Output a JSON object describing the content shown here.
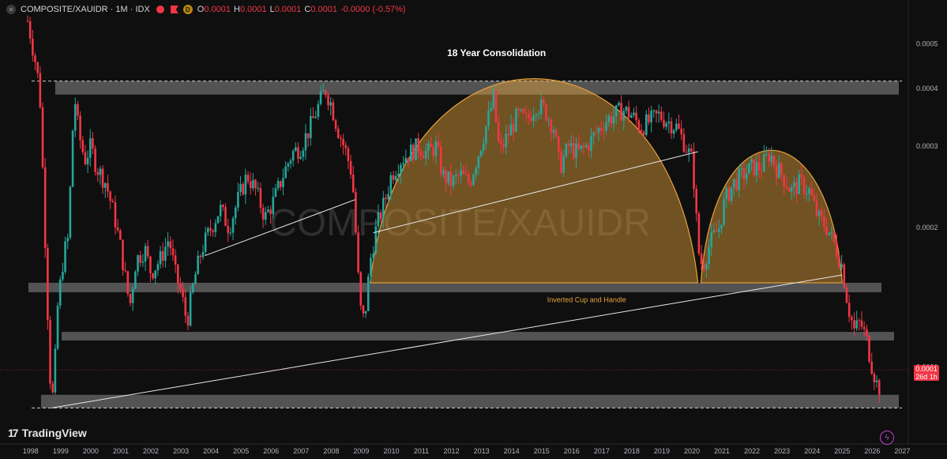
{
  "header": {
    "symbol": "COMPOSITE/XAUIDR · 1M · IDX",
    "open_label": "O",
    "open": "0.0001",
    "high_label": "H",
    "high": "0.0001",
    "low_label": "L",
    "low": "0.0001",
    "close_label": "C",
    "close": "0.0001",
    "change": "-0.0000 (-0.57%)"
  },
  "watermark": "COMPOSITE/XAUIDR",
  "logo": {
    "mark": "17",
    "text": "TradingView"
  },
  "price_badge": {
    "price": "0.0001",
    "countdown": "26d 1h"
  },
  "colors": {
    "up": "#26a69a",
    "down": "#f23645",
    "cup": "#e8a33a",
    "zone": "#6b6b6b"
  },
  "chart_data": {
    "type": "candlestick",
    "title": "18 Year Consolidation",
    "y_scale": "log",
    "y_ticks": [
      "0.0005",
      "0.0004",
      "0.0003",
      "0.0002",
      "0.0001"
    ],
    "x_ticks": [
      "1998",
      "1999",
      "2000",
      "2001",
      "2002",
      "2003",
      "2004",
      "2005",
      "2006",
      "2007",
      "2008",
      "2009",
      "2010",
      "2011",
      "2012",
      "2013",
      "2014",
      "2015",
      "2016",
      "2017",
      "2018",
      "2019",
      "2020",
      "2021",
      "2022",
      "2023",
      "2024",
      "2025",
      "2026",
      "2027"
    ],
    "xlim": [
      1997.9,
      2027.2
    ],
    "ylim": [
      7e-05,
      0.00057
    ],
    "path": [
      [
        1997.9,
        0.00056
      ],
      [
        1998.0,
        0.00052
      ],
      [
        1998.15,
        0.00046
      ],
      [
        1998.3,
        0.0004
      ],
      [
        1998.45,
        0.00022
      ],
      [
        1998.55,
        0.00014
      ],
      [
        1998.65,
        9.5e-05
      ],
      [
        1998.75,
        8.5e-05
      ],
      [
        1998.9,
        0.000135
      ],
      [
        1999.1,
        0.000175
      ],
      [
        1999.25,
        0.00019
      ],
      [
        1999.45,
        0.00039
      ],
      [
        1999.6,
        0.00032
      ],
      [
        1999.8,
        0.00028
      ],
      [
        2000.0,
        0.0003
      ],
      [
        2000.2,
        0.00027
      ],
      [
        2000.5,
        0.00025
      ],
      [
        2000.8,
        0.00021
      ],
      [
        2001.0,
        0.00018
      ],
      [
        2001.3,
        0.000135
      ],
      [
        2001.5,
        0.00017
      ],
      [
        2001.8,
        0.00018
      ],
      [
        2002.0,
        0.00016
      ],
      [
        2002.3,
        0.00017
      ],
      [
        2002.6,
        0.00019
      ],
      [
        2002.8,
        0.00016
      ],
      [
        2003.0,
        0.000145
      ],
      [
        2003.2,
        0.000125
      ],
      [
        2003.45,
        0.000155
      ],
      [
        2003.7,
        0.00018
      ],
      [
        2004.0,
        0.0002
      ],
      [
        2004.3,
        0.00022
      ],
      [
        2004.6,
        0.0002
      ],
      [
        2004.9,
        0.00023
      ],
      [
        2005.2,
        0.00026
      ],
      [
        2005.5,
        0.00024
      ],
      [
        2005.8,
        0.00021
      ],
      [
        2006.1,
        0.00023
      ],
      [
        2006.4,
        0.00026
      ],
      [
        2006.7,
        0.00029
      ],
      [
        2007.0,
        0.0003
      ],
      [
        2007.3,
        0.00033
      ],
      [
        2007.6,
        0.00037
      ],
      [
        2007.8,
        0.0004
      ],
      [
        2008.0,
        0.00037
      ],
      [
        2008.2,
        0.00033
      ],
      [
        2008.5,
        0.00029
      ],
      [
        2008.7,
        0.00026
      ],
      [
        2008.85,
        0.00018
      ],
      [
        2008.95,
        0.000135
      ],
      [
        2009.1,
        0.000125
      ],
      [
        2009.3,
        0.00017
      ],
      [
        2009.5,
        0.0002
      ],
      [
        2009.8,
        0.00023
      ],
      [
        2010.0,
        0.00026
      ],
      [
        2010.3,
        0.00028
      ],
      [
        2010.6,
        0.00029
      ],
      [
        2010.9,
        0.0003
      ],
      [
        2011.2,
        0.00029
      ],
      [
        2011.5,
        0.0003
      ],
      [
        2011.7,
        0.00026
      ],
      [
        2012.0,
        0.00025
      ],
      [
        2012.3,
        0.00026
      ],
      [
        2012.6,
        0.00025
      ],
      [
        2012.9,
        0.00029
      ],
      [
        2013.2,
        0.00034
      ],
      [
        2013.4,
        0.00038
      ],
      [
        2013.6,
        0.00029
      ],
      [
        2013.9,
        0.00032
      ],
      [
        2014.2,
        0.00035
      ],
      [
        2014.5,
        0.00034
      ],
      [
        2014.8,
        0.00037
      ],
      [
        2015.1,
        0.00036
      ],
      [
        2015.4,
        0.00033
      ],
      [
        2015.6,
        0.00027
      ],
      [
        2015.9,
        0.0003
      ],
      [
        2016.2,
        0.00029
      ],
      [
        2016.5,
        0.0003
      ],
      [
        2016.8,
        0.00032
      ],
      [
        2017.1,
        0.00034
      ],
      [
        2017.4,
        0.00035
      ],
      [
        2017.7,
        0.00036
      ],
      [
        2018.0,
        0.00035
      ],
      [
        2018.3,
        0.00033
      ],
      [
        2018.6,
        0.00034
      ],
      [
        2018.9,
        0.00035
      ],
      [
        2019.2,
        0.00034
      ],
      [
        2019.5,
        0.00033
      ],
      [
        2019.8,
        0.0003
      ],
      [
        2020.0,
        0.00028
      ],
      [
        2020.1,
        0.00024
      ],
      [
        2020.2,
        0.00018
      ],
      [
        2020.35,
        0.000165
      ],
      [
        2020.6,
        0.000185
      ],
      [
        2020.9,
        0.0002
      ],
      [
        2021.1,
        0.00023
      ],
      [
        2021.4,
        0.00025
      ],
      [
        2021.7,
        0.00026
      ],
      [
        2022.0,
        0.00027
      ],
      [
        2022.3,
        0.00027
      ],
      [
        2022.6,
        0.00029
      ],
      [
        2022.8,
        0.00027
      ],
      [
        2023.0,
        0.00026
      ],
      [
        2023.3,
        0.00024
      ],
      [
        2023.6,
        0.00025
      ],
      [
        2023.9,
        0.00024
      ],
      [
        2024.2,
        0.00021
      ],
      [
        2024.5,
        0.0002
      ],
      [
        2024.8,
        0.00018
      ],
      [
        2025.0,
        0.000165
      ],
      [
        2025.2,
        0.000135
      ],
      [
        2025.4,
        0.00012
      ],
      [
        2025.6,
        0.000125
      ],
      [
        2025.8,
        0.000115
      ],
      [
        2026.0,
        0.0001
      ],
      [
        2026.15,
        9.2e-05
      ],
      [
        2026.25,
        9e-05
      ]
    ],
    "zones": [
      {
        "y1": 0.000388,
        "y2": 0.000415
      },
      {
        "y1": 0.000145,
        "y2": 0.000152
      },
      {
        "y1": 0.000114,
        "y2": 0.000119
      },
      {
        "y1": 8.15e-05,
        "y2": 8.7e-05
      }
    ],
    "dashed_levels": [
      0.000415,
      8.15e-05
    ],
    "trendlines": [
      {
        "from": [
          2003.8,
          0.000174
        ],
        "to": [
          2008.8,
          0.00023
        ]
      },
      {
        "from": [
          2009.4,
          0.000195
        ],
        "to": [
          2020.2,
          0.000292
        ]
      },
      {
        "from": [
          1998.7,
          8.15e-05
        ],
        "to": [
          2025.0,
          0.000158
        ]
      }
    ],
    "cups": [
      {
        "start": [
          2009.3,
          0.000152
        ],
        "peak": [
          2014.7,
          0.000418
        ],
        "end": [
          2020.2,
          0.000152
        ]
      },
      {
        "start": [
          2020.3,
          0.000152
        ],
        "peak": [
          2022.6,
          0.000293
        ],
        "end": [
          2025.0,
          0.000152
        ]
      }
    ],
    "annotations": [
      {
        "text": "18 Year Consolidation",
        "x": 2013.5,
        "y": 0.00047
      },
      {
        "text": "Inverted Cup and Handle",
        "x": 2016.5,
        "y": 0.000138
      }
    ]
  }
}
